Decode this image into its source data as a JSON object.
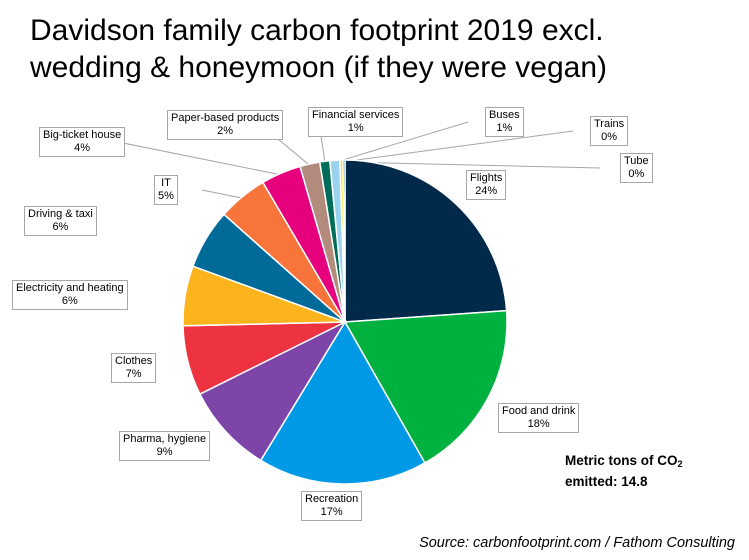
{
  "title": {
    "line1": "Davidson family carbon footprint 2019 excl.",
    "line2": "wedding & honeymoon (if they were vegan)"
  },
  "annotation": {
    "line1": "Metric tons of CO",
    "subscript": "2",
    "line2": "emitted: 14.8"
  },
  "source": "Source: carbonfootprint.com / Fathom Consulting",
  "chart_data": {
    "type": "pie",
    "title": "Davidson family carbon footprint 2019 excl. wedding & honeymoon (if they were vegan)",
    "total_label": "Metric tons of CO2 emitted: 14.8",
    "slices": [
      {
        "name": "Flights",
        "value": 24,
        "label": "24%",
        "color": "#012a4a"
      },
      {
        "name": "Food and drink",
        "value": 18,
        "label": "18%",
        "color": "#00b140"
      },
      {
        "name": "Recreation",
        "value": 17,
        "label": "17%",
        "color": "#0099e5"
      },
      {
        "name": "Pharma, hygiene",
        "value": 9,
        "label": "9%",
        "color": "#7d45a8"
      },
      {
        "name": "Clothes",
        "value": 7,
        "label": "7%",
        "color": "#ee3340"
      },
      {
        "name": "Electricity and heating",
        "value": 6,
        "label": "6%",
        "color": "#fbb41b"
      },
      {
        "name": "Driving & taxi",
        "value": 6,
        "label": "6%",
        "color": "#006b99"
      },
      {
        "name": "IT",
        "value": 5,
        "label": "5%",
        "color": "#f7743a"
      },
      {
        "name": "Big-ticket house",
        "value": 4,
        "label": "4%",
        "color": "#e6007e"
      },
      {
        "name": "Paper-based products",
        "value": 2,
        "label": "2%",
        "color": "#b38b7d"
      },
      {
        "name": "Financial services",
        "value": 1,
        "label": "1%",
        "color": "#006d5b"
      },
      {
        "name": "Buses",
        "value": 1,
        "label": "1%",
        "color": "#9ad3ee"
      },
      {
        "name": "Trains",
        "value": 0.3,
        "label": "0%",
        "color": "#ffe800"
      },
      {
        "name": "Tube",
        "value": 0.2,
        "label": "0%",
        "color": "#004e6e"
      }
    ],
    "legend": "none"
  }
}
